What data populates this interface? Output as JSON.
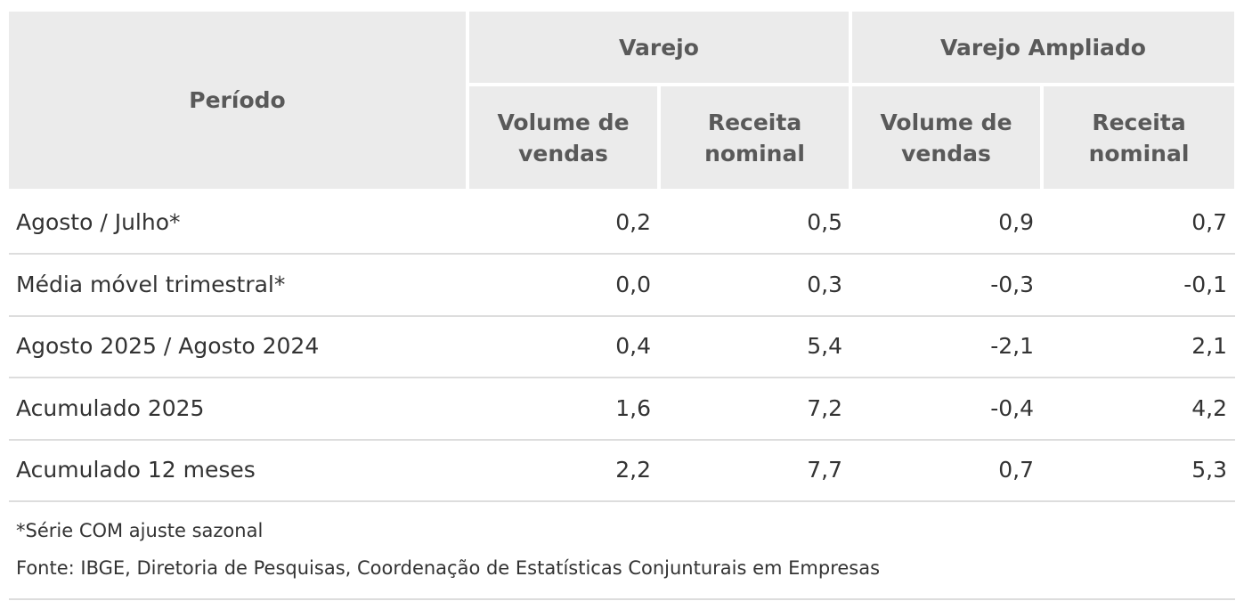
{
  "table": {
    "header": {
      "period": "Período",
      "groups": [
        "Varejo",
        "Varejo Ampliado"
      ],
      "subcolumns": [
        "Volume de vendas",
        "Receita nominal",
        "Volume de vendas",
        "Receita nominal"
      ]
    },
    "rows": [
      [
        "Agosto / Julho*",
        "0,2",
        "0,5",
        "0,9",
        "0,7"
      ],
      [
        "Média móvel trimestral*",
        "0,0",
        "0,3",
        "-0,3",
        "-0,1"
      ],
      [
        "Agosto 2025 / Agosto 2024",
        "0,4",
        "5,4",
        "-2,1",
        "2,1"
      ],
      [
        "Acumulado 2025",
        "1,6",
        "7,2",
        "-0,4",
        "4,2"
      ],
      [
        "Acumulado 12 meses",
        "2,2",
        "7,7",
        "0,7",
        "5,3"
      ]
    ]
  },
  "notes": [
    "*Série COM ajuste sazonal",
    "Fonte: IBGE, Diretoria de Pesquisas, Coordenação de Estatísticas Conjunturais em Empresas"
  ]
}
